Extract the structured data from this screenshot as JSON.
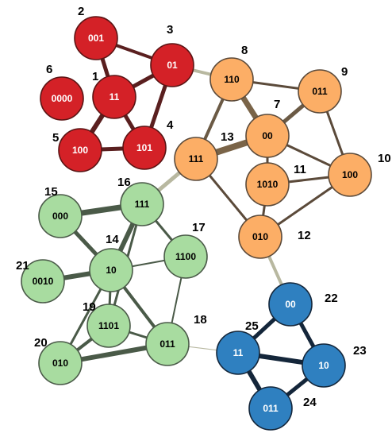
{
  "groups": {
    "red": {
      "fill": "#d42127",
      "stroke": "#5a1414",
      "text": "#ffffff"
    },
    "orange": {
      "fill": "#fcae66",
      "stroke": "#5b4a3a",
      "text": "#000000"
    },
    "green": {
      "fill": "#a8dca0",
      "stroke": "#4a5a48",
      "text": "#000000"
    },
    "blue": {
      "fill": "#2f80c0",
      "stroke": "#14263a",
      "text": "#ffffff"
    }
  },
  "nodes": [
    {
      "id": "1",
      "label": "11",
      "group": "red"
    },
    {
      "id": "2",
      "label": "001",
      "group": "red"
    },
    {
      "id": "3",
      "label": "01",
      "group": "red"
    },
    {
      "id": "4",
      "label": "101",
      "group": "red"
    },
    {
      "id": "5",
      "label": "100",
      "group": "red"
    },
    {
      "id": "6",
      "label": "0000",
      "group": "red"
    },
    {
      "id": "7",
      "label": "00",
      "group": "orange"
    },
    {
      "id": "8",
      "label": "110",
      "group": "orange"
    },
    {
      "id": "9",
      "label": "011",
      "group": "orange"
    },
    {
      "id": "10",
      "label": "100",
      "group": "orange"
    },
    {
      "id": "11",
      "label": "1010",
      "group": "orange"
    },
    {
      "id": "12",
      "label": "010",
      "group": "orange"
    },
    {
      "id": "13",
      "label": "111",
      "group": "orange"
    },
    {
      "id": "14",
      "label": "10",
      "group": "green"
    },
    {
      "id": "15",
      "label": "000",
      "group": "green"
    },
    {
      "id": "16",
      "label": "111",
      "group": "green"
    },
    {
      "id": "17",
      "label": "1100",
      "group": "green"
    },
    {
      "id": "18",
      "label": "011",
      "group": "green"
    },
    {
      "id": "19",
      "label": "1101",
      "group": "green"
    },
    {
      "id": "20",
      "label": "010",
      "group": "green"
    },
    {
      "id": "21",
      "label": "0010",
      "group": "green"
    },
    {
      "id": "22",
      "label": "00",
      "group": "blue"
    },
    {
      "id": "23",
      "label": "10",
      "group": "blue"
    },
    {
      "id": "24",
      "label": "011",
      "group": "blue"
    },
    {
      "id": "25",
      "label": "11",
      "group": "blue"
    }
  ],
  "edges": [
    {
      "source": "2",
      "target": "1",
      "color": "#5a1f1f"
    },
    {
      "source": "2",
      "target": "3",
      "color": "#5a1f1f"
    },
    {
      "source": "1",
      "target": "3",
      "color": "#5a1f1f"
    },
    {
      "source": "1",
      "target": "4",
      "color": "#5a1f1f"
    },
    {
      "source": "1",
      "target": "5",
      "color": "#5a1f1f"
    },
    {
      "source": "3",
      "target": "4",
      "color": "#5a1f1f"
    },
    {
      "source": "4",
      "target": "5",
      "color": "#5a1f1f"
    },
    {
      "source": "3",
      "target": "8",
      "color": "#b8b8a0"
    },
    {
      "source": "8",
      "target": "9",
      "color": "#5b4a3a"
    },
    {
      "source": "8",
      "target": "7",
      "color": "#7a6448"
    },
    {
      "source": "8",
      "target": "13",
      "color": "#6b5a45"
    },
    {
      "source": "7",
      "target": "9",
      "color": "#6b5a45"
    },
    {
      "source": "7",
      "target": "13",
      "color": "#7a6448"
    },
    {
      "source": "7",
      "target": "11",
      "color": "#5b4a3a"
    },
    {
      "source": "7",
      "target": "10",
      "color": "#5b4a3a"
    },
    {
      "source": "9",
      "target": "10",
      "color": "#5b4a3a"
    },
    {
      "source": "11",
      "target": "10",
      "color": "#5b4a3a"
    },
    {
      "source": "11",
      "target": "12",
      "color": "#5b4a3a"
    },
    {
      "source": "12",
      "target": "10",
      "color": "#5b4a3a"
    },
    {
      "source": "13",
      "target": "12",
      "color": "#5b4a3a"
    },
    {
      "source": "13",
      "target": "16",
      "color": "#b8b8a0"
    },
    {
      "source": "12",
      "target": "22",
      "color": "#b8b8a0"
    },
    {
      "source": "15",
      "target": "16",
      "color": "#4a5a48"
    },
    {
      "source": "15",
      "target": "14",
      "color": "#4a5a48"
    },
    {
      "source": "16",
      "target": "14",
      "color": "#4a5a48"
    },
    {
      "source": "16",
      "target": "17",
      "color": "#4a5a48"
    },
    {
      "source": "16",
      "target": "19",
      "color": "#4a5a48"
    },
    {
      "source": "21",
      "target": "14",
      "color": "#4a5a48"
    },
    {
      "source": "14",
      "target": "17",
      "color": "#4a5a48"
    },
    {
      "source": "14",
      "target": "18",
      "color": "#4a5a48"
    },
    {
      "source": "14",
      "target": "19",
      "color": "#4a5a48"
    },
    {
      "source": "14",
      "target": "20",
      "color": "#4a5a48"
    },
    {
      "source": "17",
      "target": "18",
      "color": "#4a5a48"
    },
    {
      "source": "19",
      "target": "20",
      "color": "#4a5a48"
    },
    {
      "source": "19",
      "target": "18",
      "color": "#4a5a48"
    },
    {
      "source": "20",
      "target": "18",
      "color": "#4a5a48"
    },
    {
      "source": "18",
      "target": "25",
      "color": "#b8b8a0"
    },
    {
      "source": "22",
      "target": "25",
      "color": "#14263a"
    },
    {
      "source": "22",
      "target": "23",
      "color": "#14263a"
    },
    {
      "source": "25",
      "target": "23",
      "color": "#14263a"
    },
    {
      "source": "25",
      "target": "24",
      "color": "#14263a"
    },
    {
      "source": "23",
      "target": "24",
      "color": "#14263a"
    }
  ]
}
